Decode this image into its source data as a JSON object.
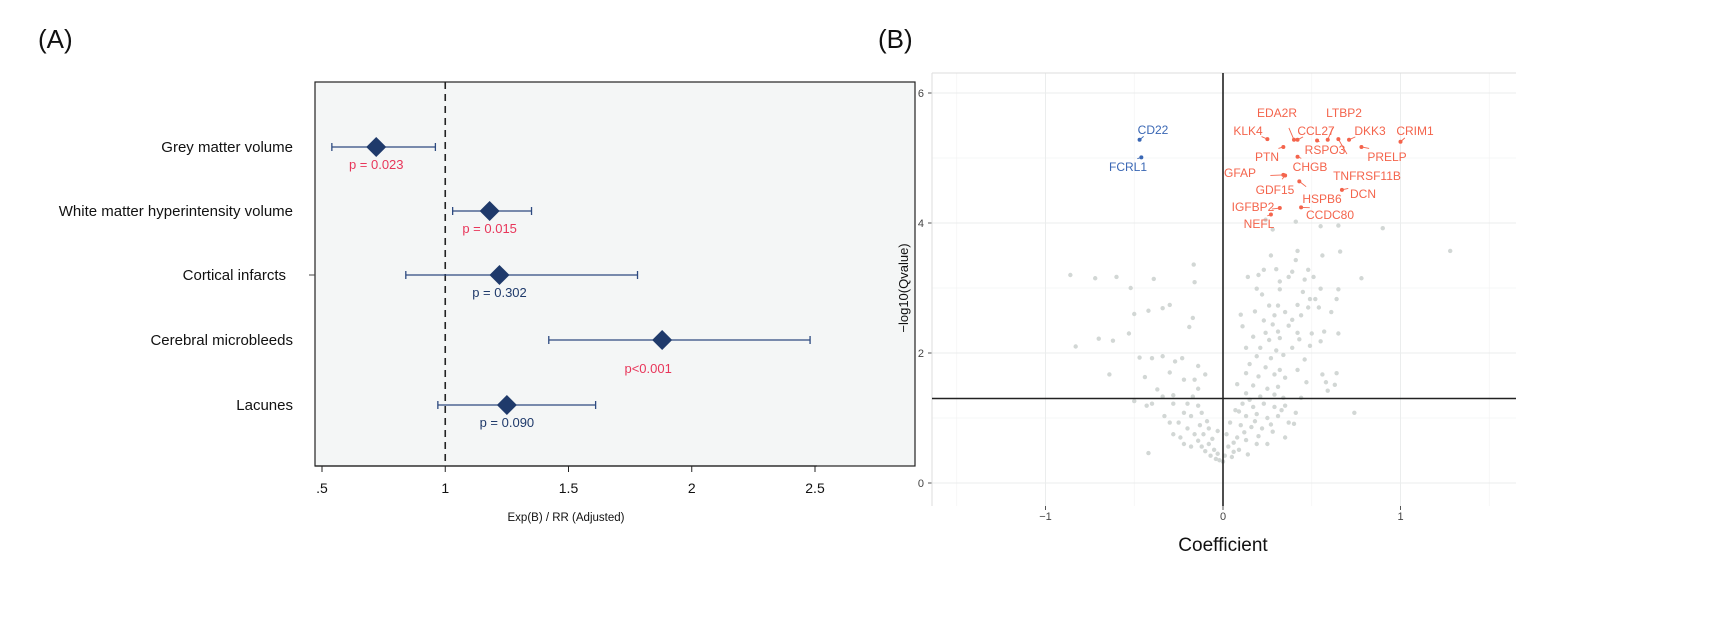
{
  "chart_data": [
    {
      "panel_label": "(A)",
      "type": "forest",
      "xlabel": "Exp(B) / RR (Adjusted)",
      "xlim": [
        0.5,
        2.5
      ],
      "x_ticks": [
        ".5",
        "1",
        "1.5",
        "2",
        "2.5"
      ],
      "x_tick_values": [
        0.5,
        1,
        1.5,
        2,
        2.5
      ],
      "reference_line": 1,
      "grid": false,
      "rows": [
        {
          "label": "Grey matter volume",
          "estimate": 0.72,
          "ci": [
            0.54,
            0.96
          ],
          "p_label": "p = 0.023",
          "significant": true
        },
        {
          "label": "White matter hyperintensity volume",
          "estimate": 1.18,
          "ci": [
            1.03,
            1.35
          ],
          "p_label": "p = 0.015",
          "significant": true
        },
        {
          "label": "Cortical infarcts",
          "estimate": 1.22,
          "ci": [
            0.84,
            1.78
          ],
          "p_label": "p = 0.302",
          "significant": false
        },
        {
          "label": "Cerebral microbleeds",
          "estimate": 1.88,
          "ci": [
            1.42,
            2.48
          ],
          "p_label": "p<0.001",
          "significant": true
        },
        {
          "label": "Lacunes",
          "estimate": 1.25,
          "ci": [
            0.97,
            1.61
          ],
          "p_label": "p = 0.090",
          "significant": false
        }
      ],
      "colors": {
        "marker": "#1f3a6b",
        "significant_p": "#e8365a",
        "nonsignificant_p": "#1f3a6b",
        "background": "#f4f6f6"
      }
    },
    {
      "panel_label": "(B)",
      "type": "scatter",
      "xlabel": "Coefficient",
      "ylabel": "-log10(Qvalue)",
      "xlim": [
        -1.64,
        1.65
      ],
      "ylim": [
        -0.35,
        6.3
      ],
      "x_ticks": [
        -1,
        0,
        1
      ],
      "y_ticks": [
        0,
        2,
        4,
        6
      ],
      "grid": true,
      "hline": 1.3,
      "vline": 0,
      "colors": {
        "up": "#f4644c",
        "down": "#3a67b4",
        "ns": "#d2d7d5"
      },
      "labeled_points": [
        {
          "name": "CD22",
          "x": -0.47,
          "y": 5.28,
          "dir": "down"
        },
        {
          "name": "FCRL1",
          "x": -0.46,
          "y": 5.01,
          "dir": "down"
        },
        {
          "name": "EDA2R",
          "x": 0.4,
          "y": 5.28,
          "dir": "up"
        },
        {
          "name": "LTBP2",
          "x": 0.59,
          "y": 5.28,
          "dir": "up"
        },
        {
          "name": "KLK4",
          "x": 0.25,
          "y": 5.29,
          "dir": "up"
        },
        {
          "name": "CCL27",
          "x": 0.42,
          "y": 5.28,
          "dir": "up"
        },
        {
          "name": "DKK3",
          "x": 0.71,
          "y": 5.28,
          "dir": "up"
        },
        {
          "name": "CRIM1",
          "x": 1.0,
          "y": 5.25,
          "dir": "up"
        },
        {
          "name": "RSPO3",
          "x": 0.53,
          "y": 5.27,
          "dir": "up"
        },
        {
          "name": "PRELP",
          "x": 0.78,
          "y": 5.17,
          "dir": "up"
        },
        {
          "name": "PTN",
          "x": 0.34,
          "y": 5.17,
          "dir": "up"
        },
        {
          "name": "CHGB",
          "x": 0.42,
          "y": 5.02,
          "dir": "up"
        },
        {
          "name": "TNFRSF11B",
          "x": 0.65,
          "y": 5.29,
          "dir": "up"
        },
        {
          "name": "GFAP",
          "x": 0.34,
          "y": 4.74,
          "dir": "up"
        },
        {
          "name": "GDF15",
          "x": 0.35,
          "y": 4.73,
          "dir": "up"
        },
        {
          "name": "DCN",
          "x": 0.67,
          "y": 4.51,
          "dir": "up"
        },
        {
          "name": "HSPB6",
          "x": 0.43,
          "y": 4.64,
          "dir": "up"
        },
        {
          "name": "IGFBP2",
          "x": 0.32,
          "y": 4.23,
          "dir": "up"
        },
        {
          "name": "CCDC80",
          "x": 0.44,
          "y": 4.24,
          "dir": "up"
        },
        {
          "name": "NEFL",
          "x": 0.27,
          "y": 4.13,
          "dir": "up"
        }
      ],
      "points": [
        [
          -0.86,
          3.2
        ],
        [
          -0.72,
          3.15
        ],
        [
          -0.6,
          3.17
        ],
        [
          -0.52,
          3.0
        ],
        [
          -0.39,
          3.14
        ],
        [
          -0.165,
          3.36
        ],
        [
          -0.16,
          3.09
        ],
        [
          -0.83,
          2.1
        ],
        [
          -0.7,
          2.22
        ],
        [
          -0.62,
          2.19
        ],
        [
          -0.64,
          1.67
        ],
        [
          -0.53,
          2.3
        ],
        [
          -0.5,
          2.6
        ],
        [
          -0.42,
          2.65
        ],
        [
          -0.34,
          2.69
        ],
        [
          -0.3,
          2.74
        ],
        [
          -0.19,
          2.4
        ],
        [
          -0.17,
          2.54
        ],
        [
          -0.47,
          1.93
        ],
        [
          -0.4,
          1.92
        ],
        [
          -0.34,
          1.95
        ],
        [
          -0.27,
          1.87
        ],
        [
          -0.23,
          1.92
        ],
        [
          -0.3,
          1.7
        ],
        [
          -0.44,
          1.63
        ],
        [
          -0.14,
          1.8
        ],
        [
          -0.1,
          1.67
        ],
        [
          -0.42,
          0.46
        ],
        [
          0.74,
          1.08
        ],
        [
          0.78,
          3.15
        ],
        [
          0.9,
          3.92
        ],
        [
          1.28,
          3.57
        ],
        [
          0.24,
          4.05
        ],
        [
          0.28,
          3.9
        ],
        [
          0.41,
          4.02
        ],
        [
          0.55,
          3.95
        ],
        [
          0.65,
          3.96
        ],
        [
          0.27,
          3.5
        ],
        [
          0.42,
          3.57
        ],
        [
          0.56,
          3.5
        ],
        [
          0.66,
          3.56
        ],
        [
          0.41,
          3.43
        ],
        [
          0.23,
          3.28
        ],
        [
          0.3,
          3.29
        ],
        [
          0.14,
          3.17
        ],
        [
          0.2,
          3.2
        ],
        [
          0.32,
          3.1
        ],
        [
          0.37,
          3.17
        ],
        [
          0.39,
          3.25
        ],
        [
          0.48,
          3.28
        ],
        [
          0.51,
          3.17
        ],
        [
          0.46,
          3.13
        ],
        [
          0.19,
          2.99
        ],
        [
          0.22,
          2.9
        ],
        [
          0.32,
          2.98
        ],
        [
          0.45,
          2.94
        ],
        [
          0.55,
          2.99
        ],
        [
          0.65,
          2.98
        ],
        [
          0.49,
          2.83
        ],
        [
          0.52,
          2.83
        ],
        [
          0.64,
          2.83
        ],
        [
          0.26,
          2.73
        ],
        [
          0.31,
          2.73
        ],
        [
          0.42,
          2.74
        ],
        [
          0.48,
          2.7
        ],
        [
          0.54,
          2.7
        ],
        [
          0.61,
          2.63
        ],
        [
          0.1,
          2.59
        ],
        [
          0.18,
          2.64
        ],
        [
          0.11,
          2.41
        ],
        [
          0.23,
          2.5
        ],
        [
          0.29,
          2.58
        ],
        [
          0.35,
          2.63
        ],
        [
          0.39,
          2.51
        ],
        [
          0.44,
          2.58
        ],
        [
          0.28,
          2.44
        ],
        [
          0.37,
          2.42
        ],
        [
          0.24,
          2.31
        ],
        [
          0.31,
          2.33
        ],
        [
          0.42,
          2.31
        ],
        [
          0.5,
          2.3
        ],
        [
          0.57,
          2.33
        ],
        [
          0.65,
          2.3
        ],
        [
          0.17,
          2.25
        ],
        [
          0.26,
          2.2
        ],
        [
          0.32,
          2.23
        ],
        [
          0.43,
          2.21
        ],
        [
          0.55,
          2.18
        ],
        [
          0.13,
          2.08
        ],
        [
          0.21,
          2.08
        ],
        [
          0.3,
          2.04
        ],
        [
          0.39,
          2.08
        ],
        [
          0.49,
          2.11
        ],
        [
          0.19,
          1.95
        ],
        [
          0.27,
          1.92
        ],
        [
          0.34,
          1.97
        ],
        [
          0.46,
          1.9
        ],
        [
          0.15,
          1.83
        ],
        [
          0.24,
          1.78
        ],
        [
          0.32,
          1.74
        ],
        [
          0.42,
          1.74
        ],
        [
          0.13,
          1.69
        ],
        [
          0.2,
          1.64
        ],
        [
          0.29,
          1.67
        ],
        [
          0.35,
          1.62
        ],
        [
          0.56,
          1.67
        ],
        [
          0.64,
          1.69
        ],
        [
          0.08,
          1.52
        ],
        [
          0.17,
          1.5
        ],
        [
          0.25,
          1.45
        ],
        [
          0.31,
          1.48
        ],
        [
          0.47,
          1.55
        ],
        [
          0.58,
          1.55
        ],
        [
          0.63,
          1.51
        ],
        [
          0.59,
          1.42
        ],
        [
          0.13,
          1.38
        ],
        [
          0.21,
          1.33
        ],
        [
          0.29,
          1.36
        ],
        [
          0.34,
          1.31
        ],
        [
          0.44,
          1.31
        ],
        [
          0.11,
          1.22
        ],
        [
          0.17,
          1.17
        ],
        [
          0.23,
          1.22
        ],
        [
          0.29,
          1.17
        ],
        [
          0.35,
          1.19
        ],
        [
          0.41,
          1.08
        ],
        [
          0.07,
          1.12
        ],
        [
          0.13,
          1.03
        ],
        [
          0.19,
          1.06
        ],
        [
          0.25,
          1.0
        ],
        [
          0.31,
          1.03
        ],
        [
          0.37,
          0.93
        ],
        [
          0.04,
          0.93
        ],
        [
          0.1,
          0.89
        ],
        [
          0.16,
          0.86
        ],
        [
          0.22,
          0.84
        ],
        [
          0.28,
          0.79
        ],
        [
          0.35,
          0.7
        ],
        [
          0.4,
          0.91
        ],
        [
          0.02,
          0.75
        ],
        [
          0.08,
          0.7
        ],
        [
          0.13,
          0.66
        ],
        [
          0.19,
          0.6
        ],
        [
          0.25,
          0.6
        ],
        [
          0.03,
          0.56
        ],
        [
          0.09,
          0.51
        ],
        [
          0.14,
          0.44
        ],
        [
          0.01,
          0.42
        ],
        [
          0.05,
          0.4
        ],
        [
          0.0,
          0.33
        ],
        [
          -0.02,
          0.35
        ],
        [
          0.06,
          0.62
        ],
        [
          0.12,
          0.78
        ],
        [
          0.18,
          0.95
        ],
        [
          0.09,
          1.1
        ],
        [
          0.15,
          1.28
        ],
        [
          0.2,
          0.72
        ],
        [
          0.27,
          0.9
        ],
        [
          0.33,
          1.12
        ],
        [
          0.06,
          0.48
        ],
        [
          -0.04,
          0.37
        ],
        [
          -0.07,
          0.42
        ],
        [
          -0.1,
          0.49
        ],
        [
          -0.12,
          0.56
        ],
        [
          -0.05,
          0.51
        ],
        [
          -0.14,
          0.65
        ],
        [
          -0.08,
          0.6
        ],
        [
          -0.18,
          0.56
        ],
        [
          -0.22,
          0.6
        ],
        [
          -0.11,
          0.75
        ],
        [
          -0.16,
          0.75
        ],
        [
          -0.24,
          0.7
        ],
        [
          -0.28,
          0.75
        ],
        [
          -0.2,
          0.84
        ],
        [
          -0.13,
          0.89
        ],
        [
          -0.08,
          0.84
        ],
        [
          -0.25,
          0.93
        ],
        [
          -0.3,
          0.93
        ],
        [
          -0.18,
          1.03
        ],
        [
          -0.12,
          1.08
        ],
        [
          -0.33,
          1.03
        ],
        [
          -0.22,
          1.08
        ],
        [
          -0.28,
          1.22
        ],
        [
          -0.2,
          1.22
        ],
        [
          -0.14,
          1.19
        ],
        [
          -0.4,
          1.22
        ],
        [
          -0.43,
          1.19
        ],
        [
          -0.5,
          1.26
        ],
        [
          -0.34,
          1.33
        ],
        [
          -0.28,
          1.35
        ],
        [
          -0.17,
          1.33
        ],
        [
          -0.14,
          1.45
        ],
        [
          -0.16,
          1.59
        ],
        [
          -0.22,
          1.59
        ],
        [
          -0.37,
          1.44
        ],
        [
          -0.03,
          0.45
        ],
        [
          -0.06,
          0.68
        ],
        [
          -0.09,
          0.95
        ],
        [
          -0.03,
          0.8
        ]
      ]
    }
  ]
}
